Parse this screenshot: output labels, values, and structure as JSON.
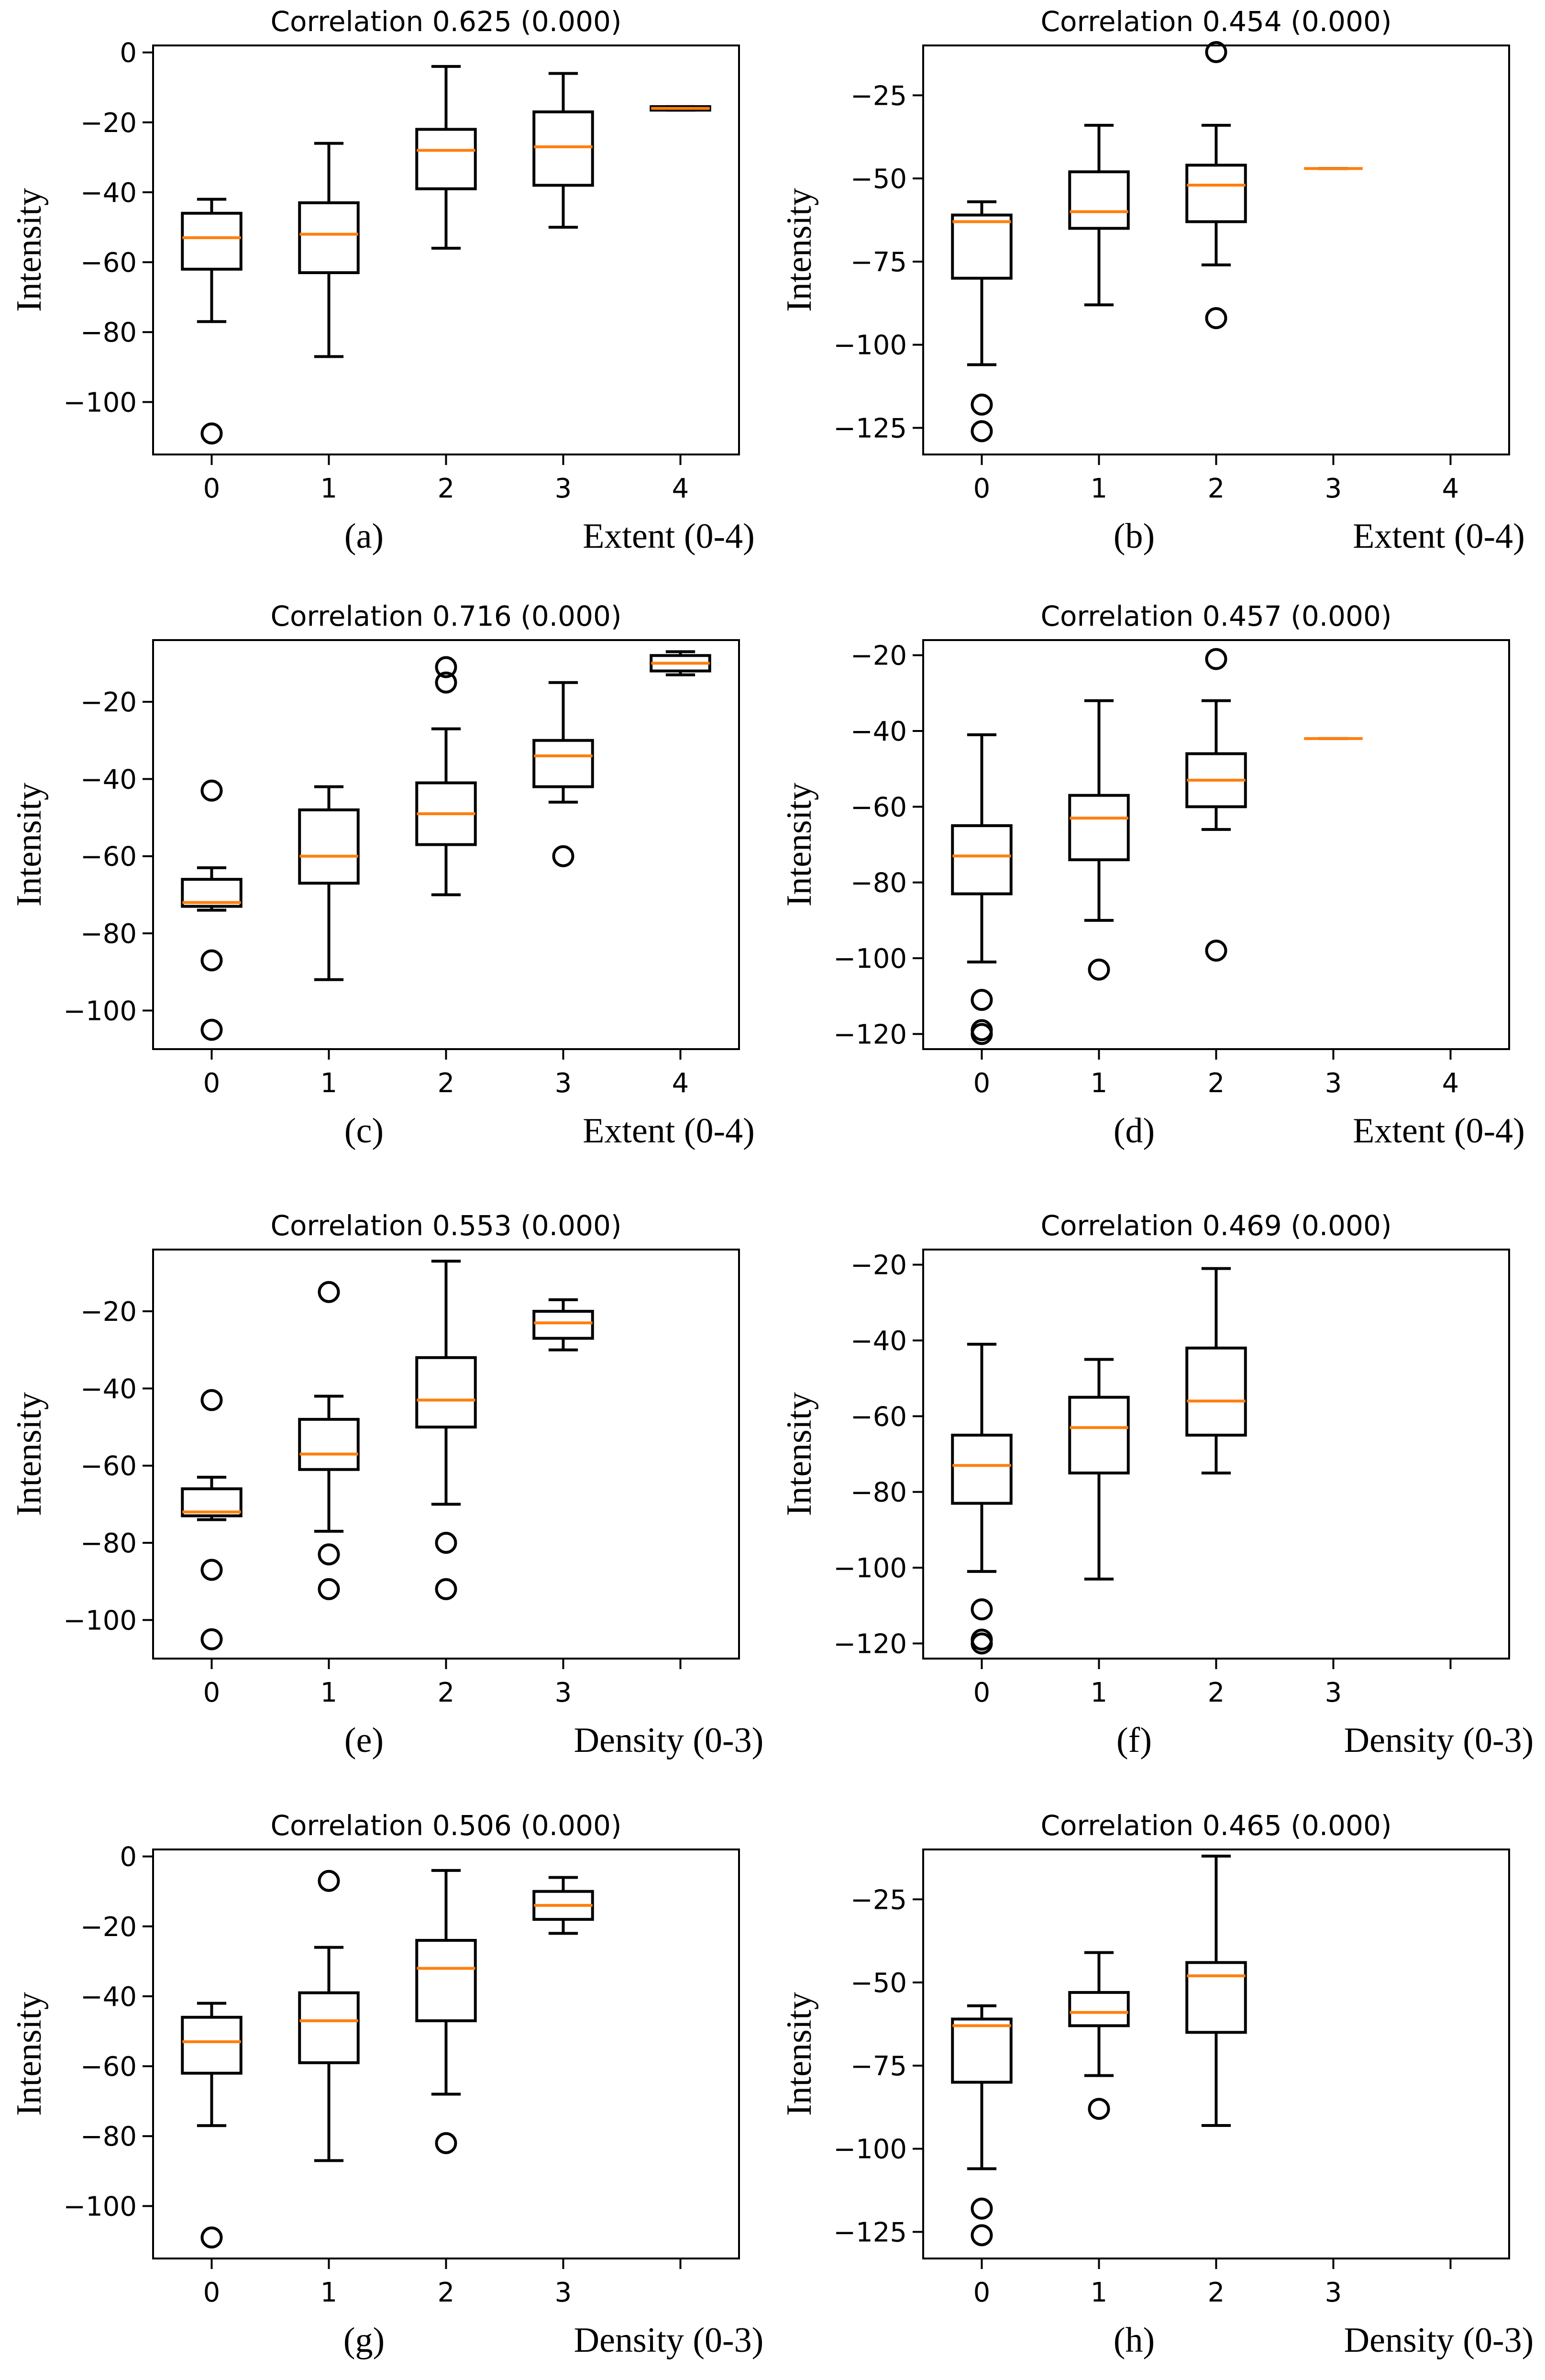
{
  "chart_data": [
    {
      "panel": "(a)",
      "type": "box",
      "title": "Correlation 0.625 (0.000)",
      "ylabel": "Intensity",
      "xlabel": "Extent (0-4)",
      "categories": [
        "0",
        "1",
        "2",
        "3",
        "4"
      ],
      "ylim": [
        -115,
        2
      ],
      "yticks": [
        0,
        -20,
        -40,
        -60,
        -80,
        -100
      ],
      "boxes": [
        {
          "cat": "0",
          "whislo": -77,
          "q1": -62,
          "med": -53,
          "q3": -46,
          "whishi": -42,
          "fliers": [
            -109
          ]
        },
        {
          "cat": "1",
          "whislo": -87,
          "q1": -63,
          "med": -52,
          "q3": -43,
          "whishi": -26,
          "fliers": []
        },
        {
          "cat": "2",
          "whislo": -56,
          "q1": -39,
          "med": -28,
          "q3": -22,
          "whishi": -4,
          "fliers": []
        },
        {
          "cat": "3",
          "whislo": -50,
          "q1": -38,
          "med": -27,
          "q3": -17,
          "whishi": -6,
          "fliers": []
        },
        {
          "cat": "4",
          "whislo": -16.5,
          "q1": -16.5,
          "med": -16,
          "q3": -15.5,
          "whishi": -15.5,
          "fliers": []
        }
      ]
    },
    {
      "panel": "(b)",
      "type": "box",
      "title": "Correlation 0.454 (0.000)",
      "ylabel": "Intensity",
      "xlabel": "Extent (0-4)",
      "categories": [
        "0",
        "1",
        "2",
        "3",
        "4"
      ],
      "ylim": [
        -133,
        -10
      ],
      "yticks": [
        -25,
        -50,
        -75,
        -100,
        -125
      ],
      "boxes": [
        {
          "cat": "0",
          "whislo": -106,
          "q1": -80,
          "med": -63,
          "q3": -61,
          "whishi": -57,
          "fliers": [
            -118,
            -126
          ]
        },
        {
          "cat": "1",
          "whislo": -88,
          "q1": -65,
          "med": -60,
          "q3": -48,
          "whishi": -34,
          "fliers": []
        },
        {
          "cat": "2",
          "whislo": -76,
          "q1": -63,
          "med": -52,
          "q3": -46,
          "whishi": -34,
          "fliers": [
            -12,
            -92
          ]
        },
        {
          "cat": "3",
          "whislo": -47,
          "q1": -47,
          "med": -47,
          "q3": -47,
          "whishi": -47,
          "fliers": []
        }
      ]
    },
    {
      "panel": "(c)",
      "type": "box",
      "title": "Correlation 0.716 (0.000)",
      "ylabel": "Intensity",
      "xlabel": "Extent (0-4)",
      "categories": [
        "0",
        "1",
        "2",
        "3",
        "4"
      ],
      "ylim": [
        -110,
        -4
      ],
      "yticks": [
        -20,
        -40,
        -60,
        -80,
        -100
      ],
      "boxes": [
        {
          "cat": "0",
          "whislo": -74,
          "q1": -73,
          "med": -72,
          "q3": -66,
          "whishi": -63,
          "fliers": [
            -43,
            -87,
            -105
          ]
        },
        {
          "cat": "1",
          "whislo": -92,
          "q1": -67,
          "med": -60,
          "q3": -48,
          "whishi": -42,
          "fliers": []
        },
        {
          "cat": "2",
          "whislo": -70,
          "q1": -57,
          "med": -49,
          "q3": -41,
          "whishi": -27,
          "fliers": [
            -11,
            -15
          ]
        },
        {
          "cat": "3",
          "whislo": -46,
          "q1": -42,
          "med": -34,
          "q3": -30,
          "whishi": -15,
          "fliers": [
            -60
          ]
        },
        {
          "cat": "4",
          "whislo": -13,
          "q1": -12,
          "med": -10,
          "q3": -8,
          "whishi": -7,
          "fliers": []
        }
      ]
    },
    {
      "panel": "(d)",
      "type": "box",
      "title": "Correlation 0.457 (0.000)",
      "ylabel": "Intensity",
      "xlabel": "Extent (0-4)",
      "categories": [
        "0",
        "1",
        "2",
        "3",
        "4"
      ],
      "ylim": [
        -124,
        -16
      ],
      "yticks": [
        -20,
        -40,
        -60,
        -80,
        -100,
        -120
      ],
      "boxes": [
        {
          "cat": "0",
          "whislo": -101,
          "q1": -83,
          "med": -73,
          "q3": -65,
          "whishi": -41,
          "fliers": [
            -111,
            -119,
            -120
          ]
        },
        {
          "cat": "1",
          "whislo": -90,
          "q1": -74,
          "med": -63,
          "q3": -57,
          "whishi": -32,
          "fliers": [
            -103
          ]
        },
        {
          "cat": "2",
          "whislo": -66,
          "q1": -60,
          "med": -53,
          "q3": -46,
          "whishi": -32,
          "fliers": [
            -21,
            -98
          ]
        },
        {
          "cat": "3",
          "whislo": -42,
          "q1": -42,
          "med": -42,
          "q3": -42,
          "whishi": -42,
          "fliers": []
        }
      ]
    },
    {
      "panel": "(e)",
      "type": "box",
      "title": "Correlation 0.553 (0.000)",
      "ylabel": "Intensity",
      "xlabel": "Density (0-3)",
      "categories": [
        "0",
        "1",
        "2",
        "3"
      ],
      "xslots": 5,
      "ylim": [
        -110,
        -4
      ],
      "yticks": [
        -20,
        -40,
        -60,
        -80,
        -100
      ],
      "boxes": [
        {
          "cat": "0",
          "whislo": -74,
          "q1": -73,
          "med": -72,
          "q3": -66,
          "whishi": -63,
          "fliers": [
            -43,
            -87,
            -105
          ]
        },
        {
          "cat": "1",
          "whislo": -77,
          "q1": -61,
          "med": -57,
          "q3": -48,
          "whishi": -42,
          "fliers": [
            -15,
            -83,
            -92
          ]
        },
        {
          "cat": "2",
          "whislo": -70,
          "q1": -50,
          "med": -43,
          "q3": -32,
          "whishi": -7,
          "fliers": [
            -80,
            -92
          ]
        },
        {
          "cat": "3",
          "whislo": -30,
          "q1": -27,
          "med": -23,
          "q3": -20,
          "whishi": -17,
          "fliers": []
        }
      ]
    },
    {
      "panel": "(f)",
      "type": "box",
      "title": "Correlation 0.469 (0.000)",
      "ylabel": "Intensity",
      "xlabel": "Density (0-3)",
      "categories": [
        "0",
        "1",
        "2",
        "3"
      ],
      "xslots": 5,
      "ylim": [
        -124,
        -16
      ],
      "yticks": [
        -20,
        -40,
        -60,
        -80,
        -100,
        -120
      ],
      "boxes": [
        {
          "cat": "0",
          "whislo": -101,
          "q1": -83,
          "med": -73,
          "q3": -65,
          "whishi": -41,
          "fliers": [
            -111,
            -119,
            -120
          ]
        },
        {
          "cat": "1",
          "whislo": -103,
          "q1": -75,
          "med": -63,
          "q3": -55,
          "whishi": -45,
          "fliers": []
        },
        {
          "cat": "2",
          "whislo": -75,
          "q1": -65,
          "med": -56,
          "q3": -42,
          "whishi": -21,
          "fliers": []
        }
      ]
    },
    {
      "panel": "(g)",
      "type": "box",
      "title": "Correlation 0.506 (0.000)",
      "ylabel": "Intensity",
      "xlabel": "Density (0-3)",
      "categories": [
        "0",
        "1",
        "2",
        "3"
      ],
      "xslots": 5,
      "ylim": [
        -115,
        2
      ],
      "yticks": [
        0,
        -20,
        -40,
        -60,
        -80,
        -100
      ],
      "boxes": [
        {
          "cat": "0",
          "whislo": -77,
          "q1": -62,
          "med": -53,
          "q3": -46,
          "whishi": -42,
          "fliers": [
            -109
          ]
        },
        {
          "cat": "1",
          "whislo": -87,
          "q1": -59,
          "med": -47,
          "q3": -39,
          "whishi": -26,
          "fliers": [
            -7
          ]
        },
        {
          "cat": "2",
          "whislo": -68,
          "q1": -47,
          "med": -32,
          "q3": -24,
          "whishi": -4,
          "fliers": [
            -82
          ]
        },
        {
          "cat": "3",
          "whislo": -22,
          "q1": -18,
          "med": -14,
          "q3": -10,
          "whishi": -6,
          "fliers": []
        }
      ]
    },
    {
      "panel": "(h)",
      "type": "box",
      "title": "Correlation 0.465 (0.000)",
      "ylabel": "Intensity",
      "xlabel": "Density (0-3)",
      "categories": [
        "0",
        "1",
        "2",
        "3"
      ],
      "xslots": 5,
      "ylim": [
        -133,
        -10
      ],
      "yticks": [
        -25,
        -50,
        -75,
        -100,
        -125
      ],
      "boxes": [
        {
          "cat": "0",
          "whislo": -106,
          "q1": -80,
          "med": -63,
          "q3": -61,
          "whishi": -57,
          "fliers": [
            -118,
            -126
          ]
        },
        {
          "cat": "1",
          "whislo": -78,
          "q1": -63,
          "med": -59,
          "q3": -53,
          "whishi": -41,
          "fliers": [
            -88
          ]
        },
        {
          "cat": "2",
          "whislo": -93,
          "q1": -65,
          "med": -48,
          "q3": -44,
          "whishi": -12,
          "fliers": []
        }
      ]
    }
  ]
}
